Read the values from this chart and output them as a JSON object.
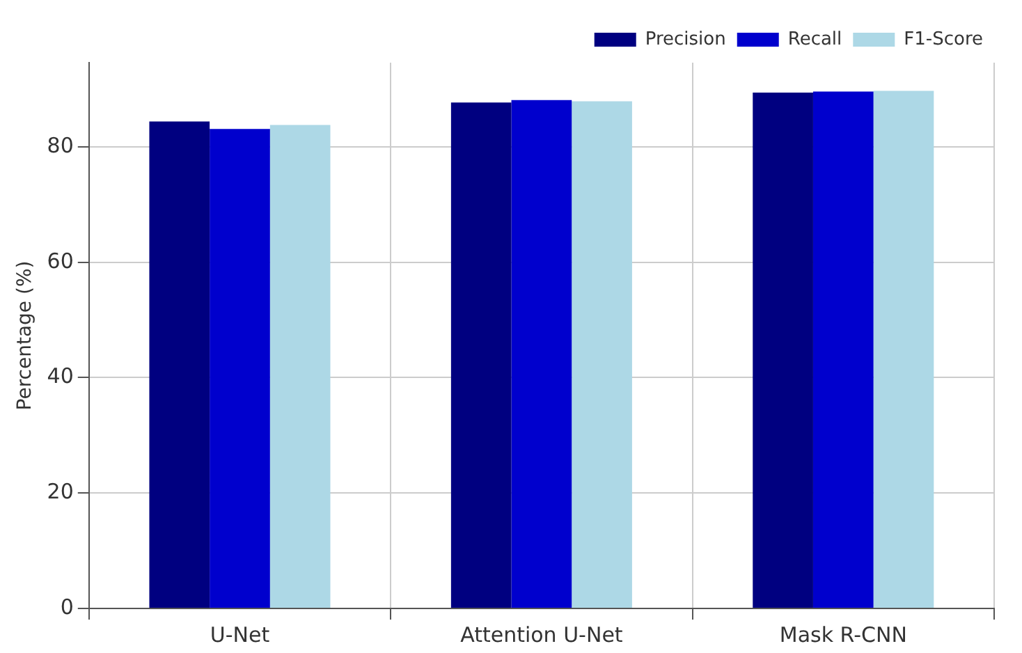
{
  "chart_data": {
    "type": "bar",
    "ylabel": "Percentage (%)",
    "categories": [
      "U-Net",
      "Attention U-Net",
      "Mask R-CNN"
    ],
    "series": [
      {
        "name": "Precision",
        "color": "#000080",
        "values": [
          84.4,
          87.7,
          89.4
        ]
      },
      {
        "name": "Recall",
        "color": "#0000cd",
        "values": [
          83.1,
          88.1,
          89.6
        ]
      },
      {
        "name": "F1-Score",
        "color": "#add8e6",
        "values": [
          83.8,
          87.9,
          89.7
        ]
      }
    ],
    "ylim": [
      0,
      94.6
    ],
    "yticks": [
      0,
      20,
      40,
      60,
      80
    ],
    "grid": true,
    "legend": "top right"
  }
}
